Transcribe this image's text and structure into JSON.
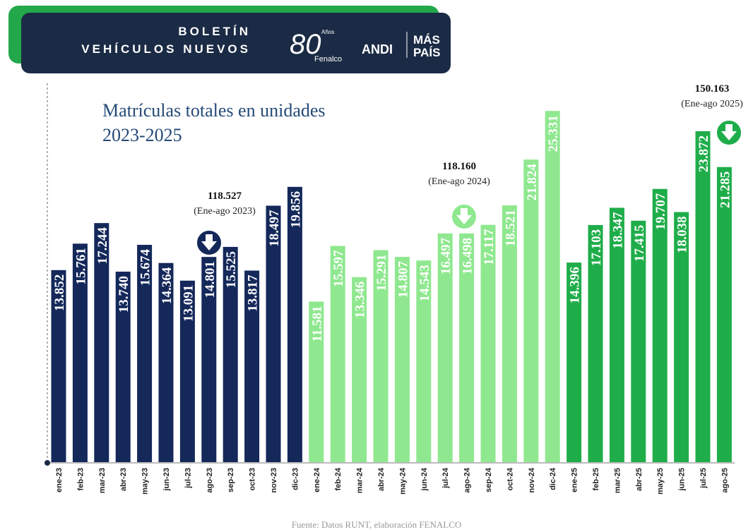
{
  "header": {
    "line1": "BOLETÍN",
    "line2": "VEHÍCULOS NUEVOS",
    "logo1_number": "80",
    "logo1_text": "Años",
    "logo1_name": "Fenalco",
    "logo2": "ANDI",
    "logo3_line1": "MÁS",
    "logo3_line2": "PAÍS"
  },
  "chart_data": {
    "type": "bar",
    "title": "Matrículas totales en unidades",
    "subtitle": "2023-2025",
    "categories": [
      "ene-23",
      "feb-23",
      "mar-23",
      "abr-23",
      "may-23",
      "jun-23",
      "jul-23",
      "ago-23",
      "sep-23",
      "oct-23",
      "nov-23",
      "dic-23",
      "ene-24",
      "feb-24",
      "mar-24",
      "abr-24",
      "may-24",
      "jun-24",
      "jul-24",
      "ago-24",
      "sep-24",
      "oct-24",
      "nov-24",
      "dic-24",
      "ene-25",
      "feb-25",
      "mar-25",
      "abr-25",
      "may-25",
      "jun-25",
      "jul-25",
      "ago-25"
    ],
    "values": [
      13852,
      15761,
      17244,
      13740,
      15674,
      14364,
      13091,
      14801,
      15525,
      13817,
      18497,
      19856,
      11581,
      15597,
      13346,
      15291,
      14807,
      14543,
      16497,
      16498,
      17117,
      18521,
      21824,
      25331,
      14396,
      17103,
      18347,
      17415,
      19707,
      18038,
      23872,
      21285
    ],
    "value_labels": [
      "13.852",
      "15.761",
      "17.244",
      "13.740",
      "15.674",
      "14.364",
      "13.091",
      "14.801",
      "15.525",
      "13.817",
      "18.497",
      "19.856",
      "11.581",
      "15.597",
      "13.346",
      "15.291",
      "14.807",
      "14.543",
      "16.497",
      "16.498",
      "17.117",
      "18.521",
      "21.824",
      "25.331",
      "14.396",
      "17.103",
      "18.347",
      "17.415",
      "19.707",
      "18.038",
      "23.872",
      "21.285"
    ],
    "colors": [
      "#14285a",
      "#14285a",
      "#14285a",
      "#14285a",
      "#14285a",
      "#14285a",
      "#14285a",
      "#14285a",
      "#14285a",
      "#14285a",
      "#14285a",
      "#14285a",
      "#8fe88f",
      "#8fe88f",
      "#8fe88f",
      "#8fe88f",
      "#8fe88f",
      "#8fe88f",
      "#8fe88f",
      "#8fe88f",
      "#8fe88f",
      "#8fe88f",
      "#8fe88f",
      "#8fe88f",
      "#1fad4a",
      "#1fad4a",
      "#1fad4a",
      "#1fad4a",
      "#1fad4a",
      "#1fad4a",
      "#1fad4a",
      "#1fad4a"
    ],
    "annotations": [
      {
        "label": "118.527",
        "note": "(Ene-ago 2023)"
      },
      {
        "label": "118.160",
        "note": "(Ene-ago 2024)"
      },
      {
        "label": "150.163",
        "note": "(Ene-ago 2025)"
      }
    ],
    "source": "Fuente: Datos RUNT, elaboración FENALCO"
  }
}
